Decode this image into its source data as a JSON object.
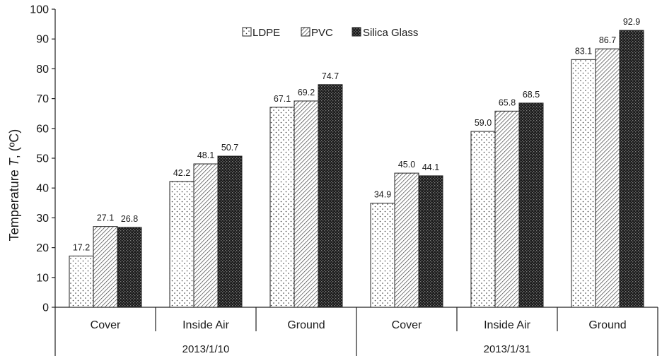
{
  "chart_data": {
    "type": "bar",
    "ylabel_prefix": "Temperature ",
    "ylabel_var": "T",
    "ylabel_suffix": ", (ºC)",
    "ylim": [
      0,
      100
    ],
    "yticks": [
      0,
      10,
      20,
      30,
      40,
      50,
      60,
      70,
      80,
      90,
      100
    ],
    "grid": false,
    "legend_position": "top-center",
    "categories": [
      "Cover",
      "Inside Air",
      "Ground",
      "Cover",
      "Inside Air",
      "Ground"
    ],
    "groups": [
      {
        "label": "2013/1/10",
        "span": 3
      },
      {
        "label": "2013/1/31",
        "span": 3
      }
    ],
    "series": [
      {
        "name": "LDPE",
        "pattern": "dots",
        "values": [
          17.2,
          42.2,
          67.1,
          34.9,
          59.0,
          83.1
        ],
        "labels": [
          "17.2",
          "42.2",
          "67.1",
          "34.9",
          "59.0",
          "83.1"
        ]
      },
      {
        "name": "PVC",
        "pattern": "hatch",
        "values": [
          27.1,
          48.1,
          69.2,
          45.0,
          65.8,
          86.7
        ],
        "labels": [
          "27.1",
          "48.1",
          "69.2",
          "45.0",
          "65.8",
          "86.7"
        ]
      },
      {
        "name": "Silica Glass",
        "pattern": "dark-checker",
        "values": [
          26.8,
          50.7,
          74.7,
          44.1,
          68.5,
          92.9
        ],
        "labels": [
          "26.8",
          "50.7",
          "74.7",
          "44.1",
          "68.5",
          "92.9"
        ]
      }
    ]
  }
}
